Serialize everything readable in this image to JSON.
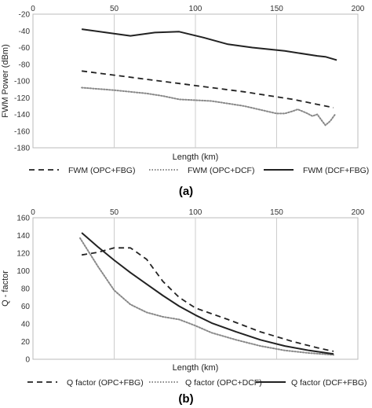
{
  "chart_data": [
    {
      "type": "line",
      "panel_label": "(a)",
      "xlabel": "Length (km)",
      "ylabel": "FWM Power (dBm)",
      "xlim": [
        0,
        200
      ],
      "ylim": [
        -180,
        -20
      ],
      "x_ticks": [
        "0",
        "50",
        "100",
        "150",
        "200"
      ],
      "y_ticks": [
        "-20",
        "-40",
        "-60",
        "-80",
        "-100",
        "-120",
        "-140",
        "-160",
        "-180"
      ],
      "x_axis_position": "top",
      "grid": "vertical",
      "legend_position": "bottom",
      "series": [
        {
          "name": "FWM (OPC+FBG)",
          "style": "dashed",
          "color": "#222222",
          "points": [
            [
              30,
              -88
            ],
            [
              50,
              -93
            ],
            [
              70,
              -98
            ],
            [
              90,
              -103
            ],
            [
              110,
              -108
            ],
            [
              130,
              -113
            ],
            [
              150,
              -119
            ],
            [
              160,
              -122
            ],
            [
              170,
              -126
            ],
            [
              185,
              -132
            ]
          ]
        },
        {
          "name": "FWM (OPC+DCF)",
          "style": "dotted",
          "color": "#888888",
          "points": [
            [
              30,
              -108
            ],
            [
              50,
              -111
            ],
            [
              70,
              -115
            ],
            [
              80,
              -118
            ],
            [
              90,
              -122
            ],
            [
              110,
              -124
            ],
            [
              130,
              -130
            ],
            [
              150,
              -139
            ],
            [
              155,
              -139
            ],
            [
              160,
              -136
            ],
            [
              163,
              -134
            ],
            [
              168,
              -138
            ],
            [
              172,
              -142
            ],
            [
              175,
              -140
            ],
            [
              178,
              -148
            ],
            [
              180,
              -153
            ],
            [
              183,
              -148
            ],
            [
              186,
              -140
            ]
          ]
        },
        {
          "name": "FWM (DCF+FBG)",
          "style": "solid",
          "color": "#222222",
          "points": [
            [
              30,
              -38
            ],
            [
              45,
              -42
            ],
            [
              60,
              -46
            ],
            [
              75,
              -42
            ],
            [
              90,
              -41
            ],
            [
              105,
              -48
            ],
            [
              120,
              -56
            ],
            [
              135,
              -60
            ],
            [
              155,
              -64
            ],
            [
              175,
              -70
            ],
            [
              180,
              -71
            ],
            [
              187,
              -75
            ]
          ]
        }
      ]
    },
    {
      "type": "line",
      "panel_label": "(b)",
      "xlabel": "Length (km)",
      "ylabel": "Q - factor",
      "xlim": [
        0,
        200
      ],
      "ylim": [
        0,
        160
      ],
      "x_ticks": [
        "0",
        "50",
        "100",
        "150",
        "200"
      ],
      "y_ticks": [
        "160",
        "140",
        "120",
        "100",
        "80",
        "60",
        "40",
        "20",
        "0"
      ],
      "x_axis_position": "top",
      "grid": "vertical",
      "legend_position": "bottom",
      "series": [
        {
          "name": "Q factor (OPC+FBG)",
          "style": "dashed",
          "color": "#222222",
          "points": [
            [
              30,
              118
            ],
            [
              40,
              121
            ],
            [
              50,
              126
            ],
            [
              60,
              126
            ],
            [
              70,
              113
            ],
            [
              80,
              88
            ],
            [
              90,
              70
            ],
            [
              100,
              58
            ],
            [
              120,
              45
            ],
            [
              140,
              31
            ],
            [
              160,
              20
            ],
            [
              175,
              13
            ],
            [
              185,
              9
            ]
          ]
        },
        {
          "name": "Q factor (OPC+DCF)",
          "style": "dotted",
          "color": "#888888",
          "points": [
            [
              29,
              137
            ],
            [
              40,
              105
            ],
            [
              50,
              78
            ],
            [
              60,
              62
            ],
            [
              70,
              53
            ],
            [
              80,
              48
            ],
            [
              90,
              45
            ],
            [
              100,
              38
            ],
            [
              110,
              30
            ],
            [
              125,
              22
            ],
            [
              140,
              15
            ],
            [
              155,
              10
            ],
            [
              170,
              7
            ],
            [
              185,
              5
            ]
          ]
        },
        {
          "name": "Q factor (DCF+FBG)",
          "style": "solid",
          "color": "#222222",
          "points": [
            [
              30,
              143
            ],
            [
              40,
              127
            ],
            [
              50,
              112
            ],
            [
              60,
              98
            ],
            [
              70,
              85
            ],
            [
              80,
              72
            ],
            [
              90,
              60
            ],
            [
              100,
              50
            ],
            [
              110,
              41
            ],
            [
              125,
              31
            ],
            [
              140,
              22
            ],
            [
              155,
              15
            ],
            [
              170,
              10
            ],
            [
              185,
              6
            ]
          ]
        }
      ]
    }
  ]
}
